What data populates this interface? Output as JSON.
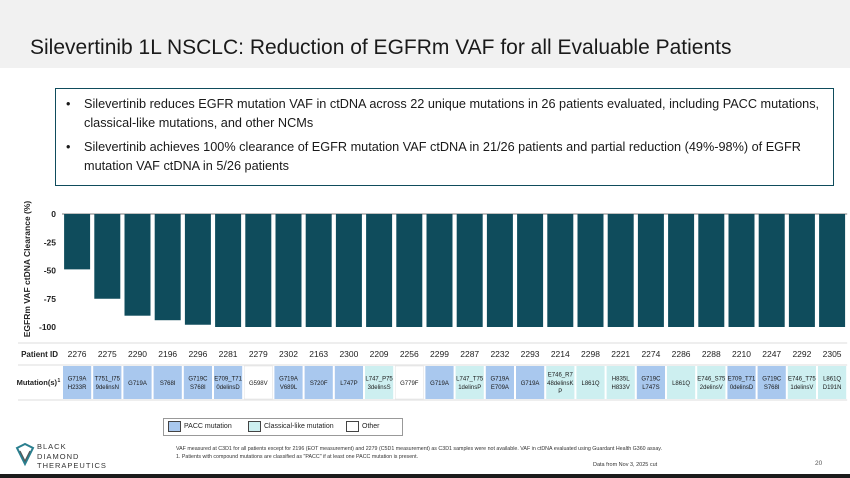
{
  "title": "Silevertinib 1L NSCLC: Reduction of EGFRm VAF for all Evaluable Patients",
  "bullets": [
    "Silevertinib reduces EGFR mutation VAF in ctDNA across 22 unique mutations in 26 patients evaluated, including PACC mutations, classical-like mutations, and other NCMs",
    "Silevertinib achieves 100% clearance of EGFR mutation VAF ctDNA in 21/26 patients and partial reduction (49%-98%) of EGFR mutation VAF ctDNA in 5/26 patients"
  ],
  "bullet_char": "•",
  "chart_data": {
    "type": "bar",
    "title": "",
    "ylabel": "EGFRm VAF ctDNA Clearance (%)",
    "ylim": [
      -100,
      0
    ],
    "yticks": [
      "0",
      "-25",
      "-50",
      "-75",
      "-100"
    ],
    "ytick_values": [
      0,
      -25,
      -50,
      -75,
      -100
    ],
    "bar_color": "#0f4c5c",
    "categories": [
      "2276",
      "2275",
      "2290",
      "2196",
      "2296",
      "2281",
      "2279",
      "2302",
      "2163",
      "2300",
      "2209",
      "2256",
      "2299",
      "2287",
      "2232",
      "2293",
      "2214",
      "2298",
      "2221",
      "2274",
      "2286",
      "2288",
      "2210",
      "2247",
      "2292",
      "2305"
    ],
    "values": [
      -49,
      -75,
      -90,
      -94,
      -98,
      -100,
      -100,
      -100,
      -100,
      -100,
      -100,
      -100,
      -100,
      -100,
      -100,
      -100,
      -100,
      -100,
      -100,
      -100,
      -100,
      -100,
      -100,
      -100,
      -100,
      -100
    ],
    "row_labels": {
      "patient": "Patient ID",
      "mutation": "Mutation(s)"
    },
    "mutation_superscript": "1",
    "mutations": [
      {
        "lines": [
          "G719A",
          "H233R"
        ],
        "type": "pacc"
      },
      {
        "lines": [
          "T751_I75",
          "9delinsN"
        ],
        "type": "pacc"
      },
      {
        "lines": [
          "G719A"
        ],
        "type": "pacc"
      },
      {
        "lines": [
          "S768I"
        ],
        "type": "pacc"
      },
      {
        "lines": [
          "G719C",
          "S768I"
        ],
        "type": "pacc"
      },
      {
        "lines": [
          "E709_T71",
          "0delinsD"
        ],
        "type": "pacc"
      },
      {
        "lines": [
          "G598V"
        ],
        "type": "other"
      },
      {
        "lines": [
          "G719A",
          "V689L"
        ],
        "type": "pacc"
      },
      {
        "lines": [
          "S720F"
        ],
        "type": "pacc"
      },
      {
        "lines": [
          "L747P"
        ],
        "type": "pacc"
      },
      {
        "lines": [
          "L747_P75",
          "3delinsS"
        ],
        "type": "classical"
      },
      {
        "lines": [
          "G779F"
        ],
        "type": "other"
      },
      {
        "lines": [
          "G719A"
        ],
        "type": "pacc"
      },
      {
        "lines": [
          "L747_T75",
          "1delinsP"
        ],
        "type": "classical"
      },
      {
        "lines": [
          "G719A",
          "E709A"
        ],
        "type": "pacc"
      },
      {
        "lines": [
          "G719A"
        ],
        "type": "pacc"
      },
      {
        "lines": [
          "E746_R7",
          "48delinsK",
          "P"
        ],
        "type": "classical"
      },
      {
        "lines": [
          "L861Q"
        ],
        "type": "classical"
      },
      {
        "lines": [
          "H835L",
          "H833V"
        ],
        "type": "classical"
      },
      {
        "lines": [
          "G719C",
          "L747S"
        ],
        "type": "pacc"
      },
      {
        "lines": [
          "L861Q"
        ],
        "type": "classical"
      },
      {
        "lines": [
          "E746_S75",
          "2delinsV"
        ],
        "type": "classical"
      },
      {
        "lines": [
          "E709_T71",
          "0delinsD"
        ],
        "type": "pacc"
      },
      {
        "lines": [
          "G719C",
          "S768I"
        ],
        "type": "pacc"
      },
      {
        "lines": [
          "E746_T75",
          "1delinsV"
        ],
        "type": "classical"
      },
      {
        "lines": [
          "L861Q",
          "D191N"
        ],
        "type": "classical"
      }
    ],
    "colors": {
      "pacc": "#a9c8ee",
      "classical": "#cdeff0",
      "other": "#ffffff"
    }
  },
  "legend": {
    "pacc": "PACC mutation",
    "classical": "Classical-like mutation",
    "other": "Other"
  },
  "footnotes": [
    "VAF measured at C3D1 for all patients except for 2196 (EOT measurement) and 2279 (C5D1 measurement) as C3D1 samples were not available.  VAF in ctDNA evaluated using Guardant Health G360 assay.",
    "1. Patients with compound mutations are classified as \"PACC\" if at least one PACC mutation is present."
  ],
  "data_from": "Data from Nov 3, 2025 cut",
  "page_number": "20",
  "logo": {
    "line1": "BLACK",
    "line2": "DIAMOND",
    "line3": "THERAPEUTICS"
  }
}
